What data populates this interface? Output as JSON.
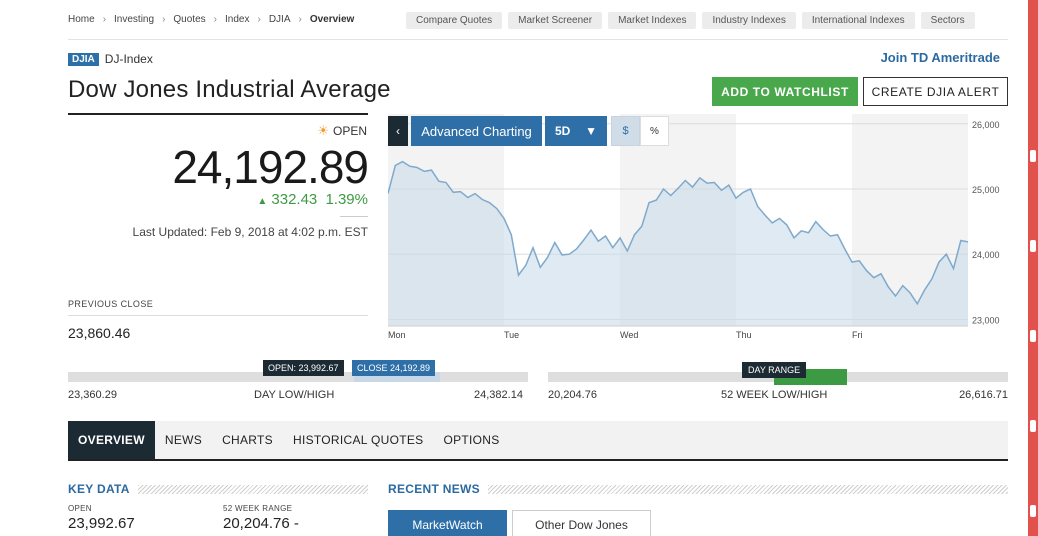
{
  "breadcrumb": [
    "Home",
    "Investing",
    "Quotes",
    "Index",
    "DJIA",
    "Overview"
  ],
  "quick_links": [
    "Compare Quotes",
    "Market Screener",
    "Market Indexes",
    "Industry Indexes",
    "International Indexes",
    "Sectors"
  ],
  "symbol": {
    "ticker": "DJIA",
    "exchange": "DJ-Index"
  },
  "join_link": "Join TD Ameritrade",
  "title": "Dow Jones Industrial Average",
  "buttons": {
    "watchlist": "ADD TO WATCHLIST",
    "alert": "CREATE DJIA ALERT"
  },
  "quote": {
    "status": "OPEN",
    "price": "24,192.89",
    "change": "332.43",
    "change_pct": "1.39%",
    "last_updated": "Last Updated: Feb 9, 2018 at 4:02 p.m. EST",
    "prev_close_label": "PREVIOUS CLOSE",
    "prev_close": "23,860.46"
  },
  "chart_controls": {
    "back": "‹",
    "advanced": "Advanced Charting",
    "period": "5D",
    "dollar": "$",
    "percent": "%"
  },
  "chart_data": {
    "type": "area",
    "title": "",
    "xlabel": "",
    "ylabel": "",
    "x_ticks": [
      "Mon",
      "Tue",
      "Wed",
      "Thu",
      "Fri"
    ],
    "y_ticks": [
      "26,000",
      "25,000",
      "24,000",
      "23,000"
    ],
    "ylim": [
      22900,
      26150
    ],
    "grid": true,
    "series": [
      {
        "values": [
          24930,
          25360,
          25420,
          25350,
          25330,
          25270,
          25290,
          25120,
          25100,
          24950,
          24960,
          24870,
          24930,
          24840,
          24790,
          24700,
          24550,
          24300,
          23680,
          23830,
          24100,
          23800,
          23950,
          24180,
          23990,
          24000,
          24080,
          24220,
          24370,
          24200,
          24280,
          24100,
          24250,
          24050,
          24300,
          24430,
          24790,
          24830,
          25000,
          24900,
          25010,
          25130,
          25030,
          25170,
          25090,
          25100,
          24980,
          25060,
          24860,
          24950,
          25000,
          24730,
          24600,
          24480,
          24550,
          24450,
          24250,
          24360,
          24330,
          24500,
          24380,
          24280,
          24300,
          24080,
          23880,
          23900,
          23750,
          23640,
          23700,
          23500,
          23360,
          23520,
          23410,
          23240,
          23450,
          23620,
          23880,
          24000,
          23780,
          24210,
          24190
        ]
      }
    ]
  },
  "day_range": {
    "open_flag": "OPEN: 23,992.67",
    "close_flag": "CLOSE 24,192.89",
    "low": "23,360.29",
    "label": "DAY LOW/HIGH",
    "high": "24,382.14"
  },
  "week52": {
    "flag": "DAY RANGE",
    "low": "20,204.76",
    "label": "52 WEEK LOW/HIGH",
    "high": "26,616.71"
  },
  "tabs": [
    "OVERVIEW",
    "NEWS",
    "CHARTS",
    "HISTORICAL QUOTES",
    "OPTIONS"
  ],
  "key_data": {
    "title": "KEY DATA",
    "open_label": "OPEN",
    "open_value": "23,992.67",
    "week52_label": "52 WEEK RANGE",
    "week52_value": "20,204.76 -"
  },
  "recent_news": {
    "title": "RECENT NEWS",
    "tabs": [
      "MarketWatch",
      "Other Dow Jones"
    ]
  },
  "icons": {
    "status": "sun-icon",
    "change": "triangle-up-icon",
    "period": "caret-down-icon",
    "breadcrumb_sep": "chevron-right-icon"
  },
  "colors": {
    "brand_blue": "#2f6fa7",
    "positive": "#3e9a41",
    "dark": "#1c2a33"
  }
}
